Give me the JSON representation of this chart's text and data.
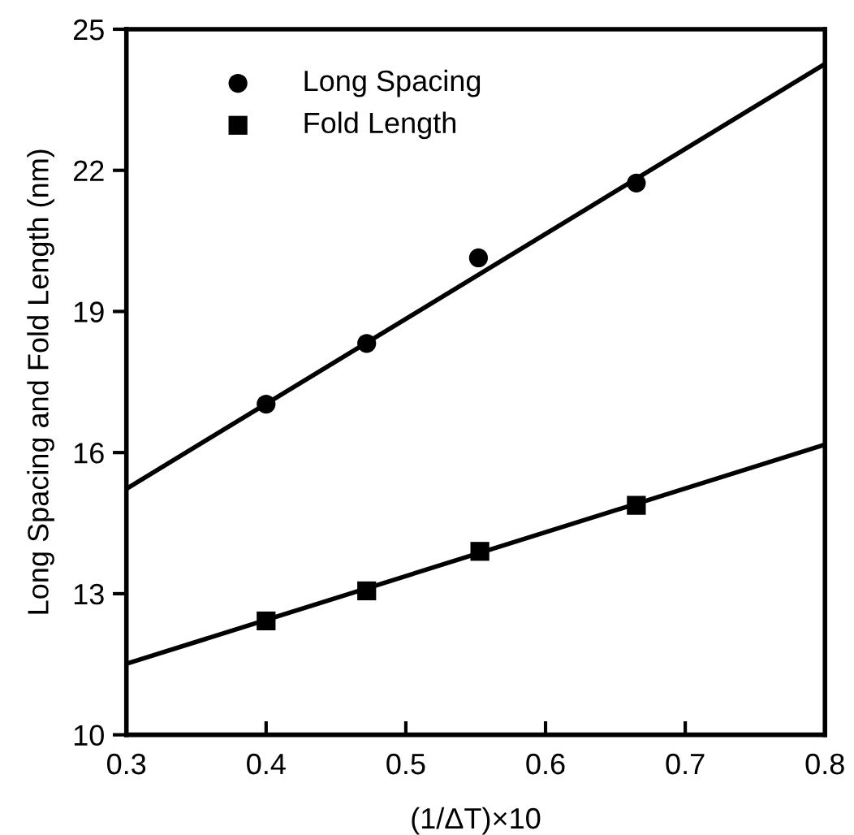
{
  "chart_data": {
    "type": "scatter",
    "xlabel": "(1/ΔT)×10",
    "ylabel": "Long Spacing and Fold Length (nm)",
    "xlim": [
      0.3,
      0.8
    ],
    "xticks": [
      0.3,
      0.4,
      0.5,
      0.6,
      0.7,
      0.8
    ],
    "ylim": [
      10,
      25
    ],
    "yticks": [
      10,
      13,
      16,
      19,
      22,
      25
    ],
    "legend": "top left",
    "grid": false,
    "series": [
      {
        "name": "Long Spacing",
        "color": "#000000",
        "marker": "circle",
        "x": [
          0.4,
          0.472,
          0.552,
          0.665
        ],
        "values": [
          17.03,
          18.32,
          20.14,
          21.73
        ]
      },
      {
        "name": "Fold Length",
        "color": "#000000",
        "marker": "square",
        "x": [
          0.4,
          0.472,
          0.553,
          0.665
        ],
        "values": [
          12.42,
          13.06,
          13.9,
          14.88
        ]
      },
      {
        "type": "line",
        "color": "#000000",
        "marker": "none",
        "line_style": "solid",
        "x": [
          0.3,
          0.8
        ],
        "values": [
          15.23,
          24.26
        ]
      },
      {
        "type": "line",
        "color": "#000000",
        "marker": "none",
        "line_style": "solid",
        "x": [
          0.3,
          0.8
        ],
        "values": [
          11.51,
          16.17
        ]
      }
    ]
  }
}
